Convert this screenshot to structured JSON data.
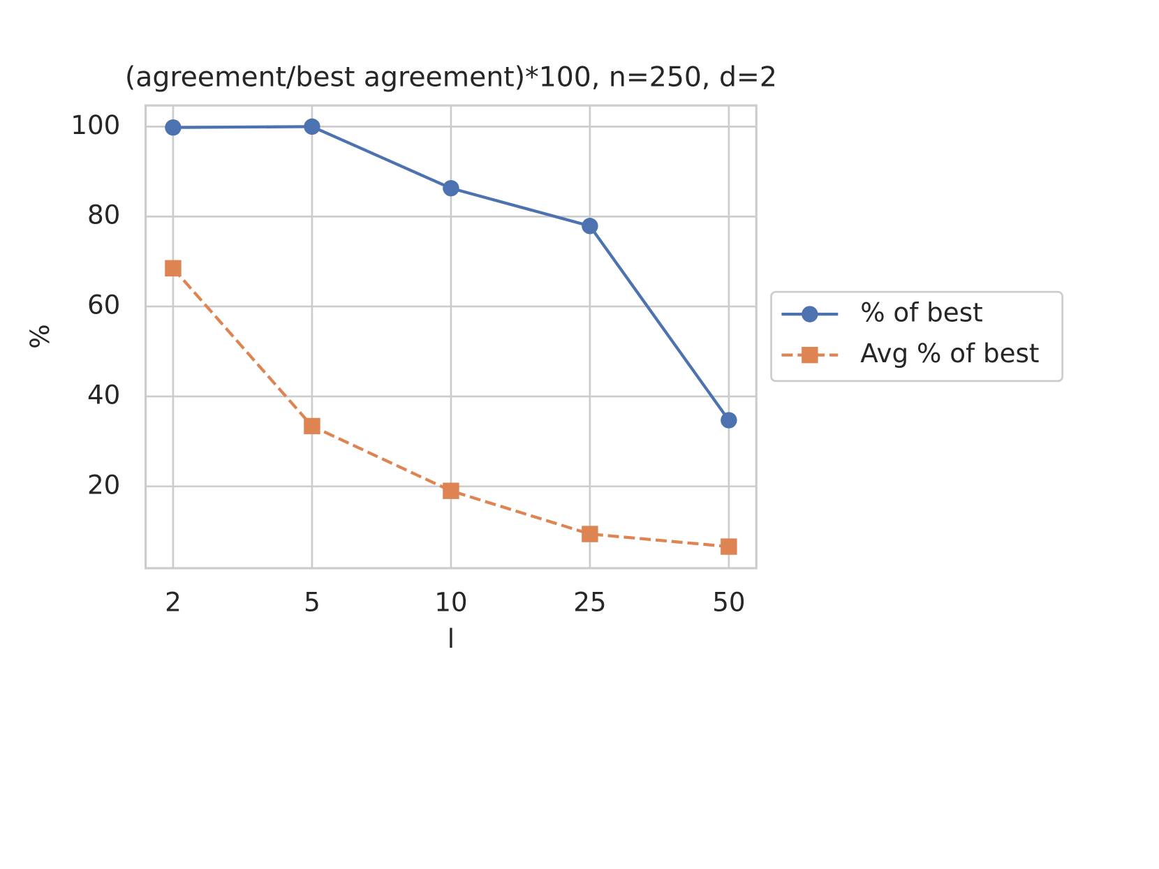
{
  "chart_data": {
    "type": "line",
    "title": "(agreement/best agreement)*100, n=250, d=2",
    "x_label": "l",
    "y_label": "%",
    "categories": [
      "2",
      "5",
      "10",
      "25",
      "50"
    ],
    "series": [
      {
        "name": "% of best",
        "color": "#4c72b0",
        "marker": "circle",
        "linestyle": "solid",
        "values": [
          99.8,
          100,
          86.3,
          77.9,
          34.7
        ]
      },
      {
        "name": "Avg % of best",
        "color": "#dd8452",
        "marker": "square",
        "linestyle": "dashed",
        "values": [
          68.5,
          33.4,
          19.0,
          9.4,
          6.6
        ]
      }
    ],
    "ylim": [
      1.8,
      104.7
    ],
    "yticks": [
      20,
      40,
      60,
      80,
      100
    ],
    "grid": true,
    "legend": "outside right"
  }
}
